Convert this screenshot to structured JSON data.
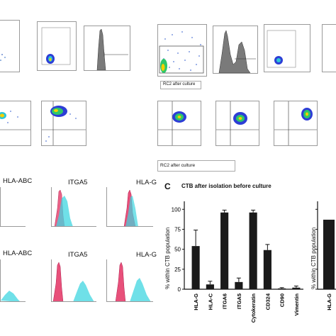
{
  "captions": {
    "row1": "RC2 after culture",
    "row2": "RC2 after culture"
  },
  "histogram_labels": [
    "HLA-ABC",
    "ITGA5",
    "HLA-G",
    "HLA-ABC",
    "ITGA5",
    "HLA-G"
  ],
  "panel_c": {
    "letter": "C"
  },
  "chart_data": {
    "type": "bar",
    "title": "CTB after isolation before culture",
    "ylabel": "% within CTB population",
    "categories": [
      "HLA-G",
      "HLA-C",
      "ITGA6",
      "ITGA5",
      "Cytokeratin",
      "CD324",
      "CD90",
      "Vimentin"
    ],
    "values": [
      54,
      6,
      96,
      9,
      96,
      49,
      1,
      2
    ],
    "errors": [
      20,
      4,
      3,
      5,
      3,
      7,
      1,
      2
    ],
    "yticks": [
      0,
      25,
      50,
      75,
      100
    ],
    "ylim": [
      0,
      110
    ],
    "color": "#1a1a1a"
  },
  "chart_data_partial": {
    "type": "bar",
    "ylabel": "% within CTB population",
    "categories": [
      "HLA-G"
    ],
    "values": [
      87
    ],
    "yticks": [
      0,
      25,
      50,
      75,
      100
    ],
    "ylim": [
      0,
      110
    ]
  }
}
